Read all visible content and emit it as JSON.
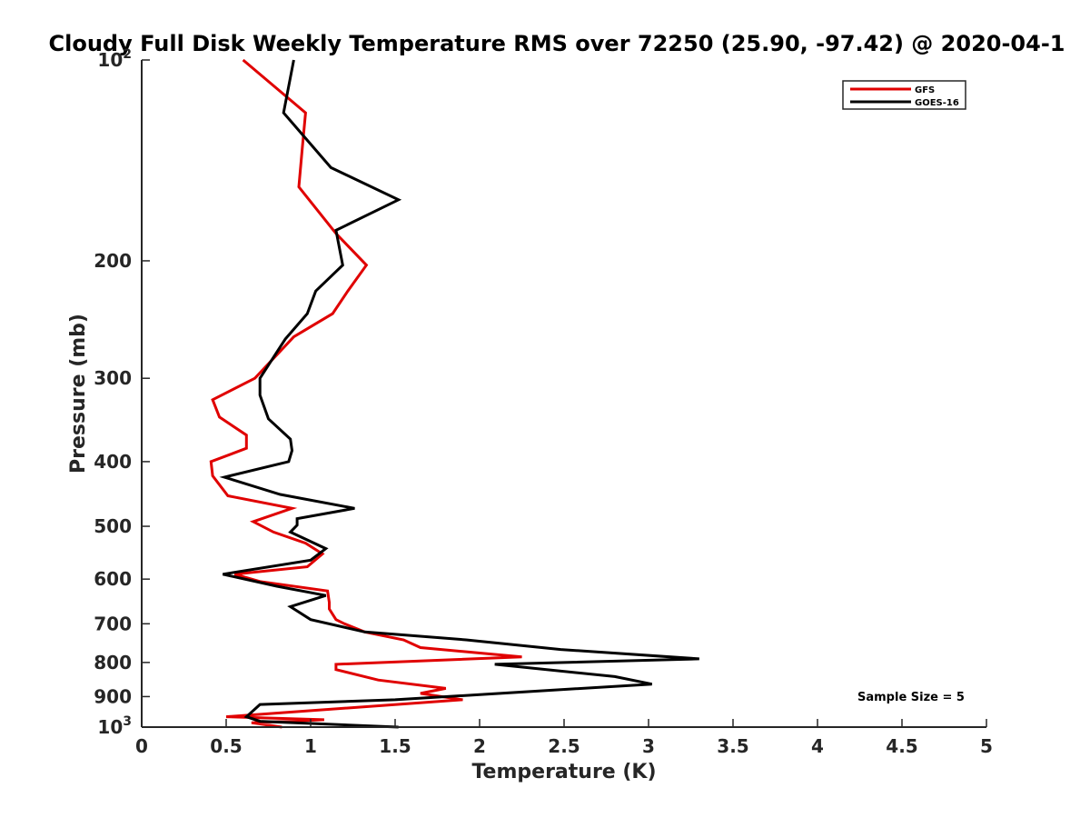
{
  "chart_data": {
    "type": "line",
    "title": "Cloudy Full Disk Weekly Temperature RMS over 72250 (25.90, -97.42) @ 2020-04-1",
    "xlabel": "Temperature (K)",
    "ylabel": "Pressure (mb)",
    "xlim": [
      0,
      5
    ],
    "ylim": [
      100,
      1000
    ],
    "y_scale": "log",
    "y_reversed": true,
    "grid": false,
    "legend_position": "top-right",
    "x_ticks": [
      "0",
      "0.5",
      "1",
      "1.5",
      "2",
      "2.5",
      "3",
      "3.5",
      "4",
      "4.5",
      "5"
    ],
    "x_tick_values": [
      0,
      0.5,
      1,
      1.5,
      2,
      2.5,
      3,
      3.5,
      4,
      4.5,
      5
    ],
    "y_ticks": [
      {
        "value": 100,
        "base": "10",
        "exp": "2"
      },
      {
        "value": 200,
        "label": "200"
      },
      {
        "value": 300,
        "label": "300"
      },
      {
        "value": 400,
        "label": "400"
      },
      {
        "value": 500,
        "label": "500"
      },
      {
        "value": 600,
        "label": "600"
      },
      {
        "value": 700,
        "label": "700"
      },
      {
        "value": 800,
        "label": "800"
      },
      {
        "value": 900,
        "label": "900"
      },
      {
        "value": 1000,
        "base": "10",
        "exp": "3"
      }
    ],
    "annotation": "Sample Size = 5",
    "series": [
      {
        "name": "GFS",
        "color": "#e00000",
        "points": [
          [
            0.6,
            100
          ],
          [
            0.97,
            120
          ],
          [
            0.95,
            136
          ],
          [
            0.93,
            155
          ],
          [
            1.15,
            182
          ],
          [
            1.33,
            203
          ],
          [
            1.22,
            222
          ],
          [
            1.13,
            240
          ],
          [
            0.9,
            260
          ],
          [
            0.67,
            300
          ],
          [
            0.42,
            323
          ],
          [
            0.46,
            343
          ],
          [
            0.62,
            365
          ],
          [
            0.62,
            382
          ],
          [
            0.41,
            400
          ],
          [
            0.42,
            420
          ],
          [
            0.51,
            450
          ],
          [
            0.89,
            470
          ],
          [
            0.66,
            492
          ],
          [
            0.78,
            510
          ],
          [
            0.97,
            530
          ],
          [
            1.07,
            550
          ],
          [
            0.98,
            575
          ],
          [
            0.55,
            590
          ],
          [
            0.7,
            605
          ],
          [
            1.1,
            625
          ],
          [
            1.11,
            650
          ],
          [
            1.11,
            665
          ],
          [
            1.15,
            690
          ],
          [
            1.2,
            700
          ],
          [
            1.32,
            720
          ],
          [
            1.55,
            740
          ],
          [
            1.65,
            760
          ],
          [
            2.25,
            785
          ],
          [
            1.15,
            805
          ],
          [
            1.15,
            820
          ],
          [
            1.4,
            850
          ],
          [
            1.8,
            875
          ],
          [
            1.65,
            890
          ],
          [
            1.9,
            910
          ],
          [
            0.5,
            965
          ],
          [
            1.08,
            975
          ],
          [
            0.65,
            985
          ],
          [
            0.83,
            1000
          ]
        ]
      },
      {
        "name": "GOES-16",
        "color": "#000000",
        "points": [
          [
            0.9,
            100
          ],
          [
            0.84,
            120
          ],
          [
            1.12,
            145
          ],
          [
            1.52,
            162
          ],
          [
            1.15,
            180
          ],
          [
            1.19,
            203
          ],
          [
            1.03,
            222
          ],
          [
            0.98,
            240
          ],
          [
            0.85,
            262
          ],
          [
            0.7,
            300
          ],
          [
            0.7,
            318
          ],
          [
            0.75,
            345
          ],
          [
            0.88,
            370
          ],
          [
            0.89,
            385
          ],
          [
            0.87,
            400
          ],
          [
            0.49,
            422
          ],
          [
            0.82,
            448
          ],
          [
            1.26,
            470
          ],
          [
            0.92,
            487
          ],
          [
            0.92,
            498
          ],
          [
            0.88,
            510
          ],
          [
            1.09,
            540
          ],
          [
            1.0,
            562
          ],
          [
            0.48,
            590
          ],
          [
            0.8,
            615
          ],
          [
            1.09,
            635
          ],
          [
            0.88,
            660
          ],
          [
            1.0,
            690
          ],
          [
            1.32,
            720
          ],
          [
            1.92,
            740
          ],
          [
            2.48,
            765
          ],
          [
            3.3,
            790
          ],
          [
            2.09,
            805
          ],
          [
            2.8,
            840
          ],
          [
            3.02,
            862
          ],
          [
            1.5,
            910
          ],
          [
            0.7,
            925
          ],
          [
            0.62,
            965
          ],
          [
            0.7,
            980
          ],
          [
            1.52,
            1000
          ]
        ]
      }
    ]
  }
}
